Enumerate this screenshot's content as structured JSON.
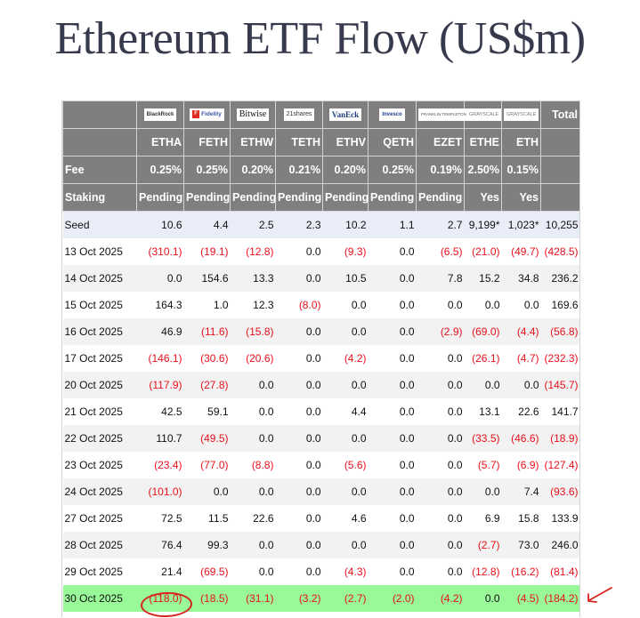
{
  "title": "Ethereum ETF Flow (US$m)",
  "table": {
    "issuers": [
      {
        "name": "BlackRock",
        "logo": "BlackRock",
        "style": "blackrock"
      },
      {
        "name": "Fidelity",
        "logo": "Fidelity",
        "style": "fidelity"
      },
      {
        "name": "Bitwise",
        "logo": "Bitwise",
        "style": "bitwise"
      },
      {
        "name": "21shares",
        "logo": "21shares",
        "style": "shares"
      },
      {
        "name": "VanEck",
        "logo": "VanEck",
        "style": "vaneck"
      },
      {
        "name": "Invesco",
        "logo": "Invesco",
        "style": "invesco"
      },
      {
        "name": "Franklin Templeton",
        "logo": "FRANKLIN TEMPLETON",
        "style": "franklin"
      },
      {
        "name": "Grayscale",
        "logo": "GRAYSCALE",
        "style": "grayscale"
      },
      {
        "name": "Grayscale",
        "logo": "GRAYSCALE",
        "style": "grayscale"
      }
    ],
    "total_label": "Total",
    "tickers": [
      "ETHA",
      "FETH",
      "ETHW",
      "TETH",
      "ETHV",
      "QETH",
      "EZET",
      "ETHE",
      "ETH"
    ],
    "fee_label": "Fee",
    "fees": [
      "0.25%",
      "0.25%",
      "0.20%",
      "0.21%",
      "0.20%",
      "0.25%",
      "0.19%",
      "2.50%",
      "0.15%"
    ],
    "staking_label": "Staking",
    "staking": [
      "Pending",
      "Pending",
      "Pending",
      "Pending",
      "Pending",
      "Pending",
      "Pending",
      "Yes",
      "Yes"
    ],
    "rows": [
      {
        "date": "Seed",
        "values": [
          "10.6",
          "4.4",
          "2.5",
          "2.3",
          "10.2",
          "1.1",
          "2.7",
          "9,199*",
          "1,023*",
          "10,255"
        ],
        "kind": "seed"
      },
      {
        "date": "13 Oct 2025",
        "values": [
          "(310.1)",
          "(19.1)",
          "(12.8)",
          "0.0",
          "(9.3)",
          "0.0",
          "(6.5)",
          "(21.0)",
          "(49.7)",
          "(428.5)"
        ]
      },
      {
        "date": "14 Oct 2025",
        "values": [
          "0.0",
          "154.6",
          "13.3",
          "0.0",
          "10.5",
          "0.0",
          "7.8",
          "15.2",
          "34.8",
          "236.2"
        ]
      },
      {
        "date": "15 Oct 2025",
        "values": [
          "164.3",
          "1.0",
          "12.3",
          "(8.0)",
          "0.0",
          "0.0",
          "0.0",
          "0.0",
          "0.0",
          "169.6"
        ]
      },
      {
        "date": "16 Oct 2025",
        "values": [
          "46.9",
          "(11.6)",
          "(15.8)",
          "0.0",
          "0.0",
          "0.0",
          "(2.9)",
          "(69.0)",
          "(4.4)",
          "(56.8)"
        ]
      },
      {
        "date": "17 Oct 2025",
        "values": [
          "(146.1)",
          "(30.6)",
          "(20.6)",
          "0.0",
          "(4.2)",
          "0.0",
          "0.0",
          "(26.1)",
          "(4.7)",
          "(232.3)"
        ]
      },
      {
        "date": "20 Oct 2025",
        "values": [
          "(117.9)",
          "(27.8)",
          "0.0",
          "0.0",
          "0.0",
          "0.0",
          "0.0",
          "0.0",
          "0.0",
          "(145.7)"
        ]
      },
      {
        "date": "21 Oct 2025",
        "values": [
          "42.5",
          "59.1",
          "0.0",
          "0.0",
          "4.4",
          "0.0",
          "0.0",
          "13.1",
          "22.6",
          "141.7"
        ]
      },
      {
        "date": "22 Oct 2025",
        "values": [
          "110.7",
          "(49.5)",
          "0.0",
          "0.0",
          "0.0",
          "0.0",
          "0.0",
          "(33.5)",
          "(46.6)",
          "(18.9)"
        ]
      },
      {
        "date": "23 Oct 2025",
        "values": [
          "(23.4)",
          "(77.0)",
          "(8.8)",
          "0.0",
          "(5.6)",
          "0.0",
          "0.0",
          "(5.7)",
          "(6.9)",
          "(127.4)"
        ]
      },
      {
        "date": "24 Oct 2025",
        "values": [
          "(101.0)",
          "0.0",
          "0.0",
          "0.0",
          "0.0",
          "0.0",
          "0.0",
          "0.0",
          "7.4",
          "(93.6)"
        ]
      },
      {
        "date": "27 Oct 2025",
        "values": [
          "72.5",
          "11.5",
          "22.6",
          "0.0",
          "4.6",
          "0.0",
          "0.0",
          "6.9",
          "15.8",
          "133.9"
        ]
      },
      {
        "date": "28 Oct 2025",
        "values": [
          "76.4",
          "99.3",
          "0.0",
          "0.0",
          "0.0",
          "0.0",
          "0.0",
          "(2.7)",
          "73.0",
          "246.0"
        ]
      },
      {
        "date": "29 Oct 2025",
        "values": [
          "21.4",
          "(69.5)",
          "0.0",
          "0.0",
          "(4.3)",
          "0.0",
          "0.0",
          "(12.8)",
          "(16.2)",
          "(81.4)"
        ]
      },
      {
        "date": "30 Oct 2025",
        "values": [
          "(118.0)",
          "(18.5)",
          "(31.1)",
          "(3.2)",
          "(2.7)",
          "(2.0)",
          "(4.2)",
          "0.0",
          "(4.5)",
          "(184.2)"
        ],
        "kind": "highlight"
      }
    ]
  },
  "colors": {
    "header_bg": "#7f7f7f",
    "seed_bg": "#e8edf7",
    "highlight_bg": "#99f898",
    "negative": "#e8101a",
    "annotation": "#d6231c",
    "title": "#373a4d"
  },
  "annotations": {
    "circled_value": "(118.0)",
    "arrow_target": "(184.2)"
  }
}
